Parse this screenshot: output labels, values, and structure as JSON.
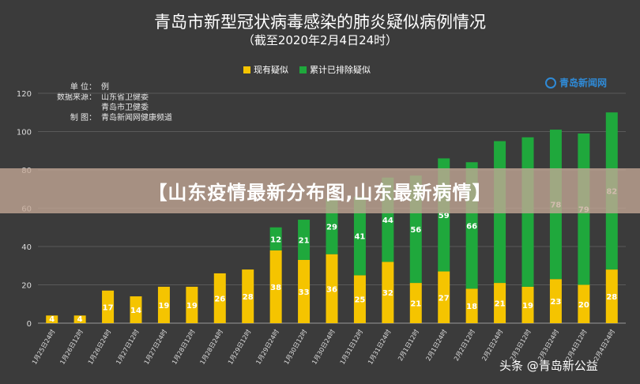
{
  "chart_data": {
    "type": "bar",
    "title": "青岛市新型冠状病毒感染的肺炎疑似病例情况",
    "subtitle": "（截至2020年2月4日24时）",
    "stacked": true,
    "categories": [
      "1月25日24时",
      "1月26日12时",
      "1月26日24时",
      "1月27日12时",
      "1月27日24时",
      "1月28日12时",
      "1月28日24时",
      "1月29日12时",
      "1月29日24时",
      "1月30日12时",
      "1月30日24时",
      "1月31日12时",
      "1月31日24时",
      "2月1日12时",
      "2月1日24时",
      "2月2日12时",
      "2月2日24时",
      "2月3日12时",
      "2月3日24时",
      "2月4日12时",
      "2月4日24时"
    ],
    "series": [
      {
        "name": "现有疑似",
        "color": "#f5c400",
        "values": [
          4,
          4,
          17,
          14,
          19,
          19,
          26,
          28,
          38,
          33,
          36,
          25,
          32,
          21,
          27,
          18,
          21,
          19,
          23,
          20,
          28
        ],
        "labels": [
          "4",
          "4",
          "17",
          "14",
          "19",
          "19",
          "26",
          "28",
          "38",
          "33",
          "36",
          "25",
          "32",
          "21",
          "27",
          "18",
          "21",
          "19",
          "23",
          "20",
          "28"
        ]
      },
      {
        "name": "累计已排除疑似",
        "color": "#1fa83c",
        "values": [
          0,
          0,
          0,
          0,
          0,
          0,
          0,
          0,
          12,
          21,
          29,
          41,
          44,
          56,
          59,
          66,
          74,
          78,
          78,
          79,
          82
        ],
        "labels": [
          "",
          "",
          "",
          "",
          "",
          "",
          "",
          "",
          "12",
          "21",
          "29",
          "41",
          "44",
          "56",
          "59",
          "66",
          "",
          "",
          "78",
          "79",
          "82"
        ]
      }
    ],
    "yticks": [
      "0",
      "20",
      "40",
      "60",
      "80",
      "100",
      "120"
    ],
    "ylim": [
      0,
      120
    ],
    "grid": true,
    "legend_position": "top-center"
  },
  "info": {
    "unit_key": "单  位：",
    "unit_val": "例",
    "source_key": "数据来源：",
    "source_val1": "山东省卫健委",
    "source_val2": "青岛市卫健委",
    "maker_key": "制  图：",
    "maker_val": "青岛新闻网健康频道"
  },
  "logo": {
    "text": "青岛新闻网"
  },
  "banner": {
    "text": "【山东疫情最新分布图,山东最新病情】"
  },
  "watermark": {
    "text": "头条 @青岛新公益"
  }
}
